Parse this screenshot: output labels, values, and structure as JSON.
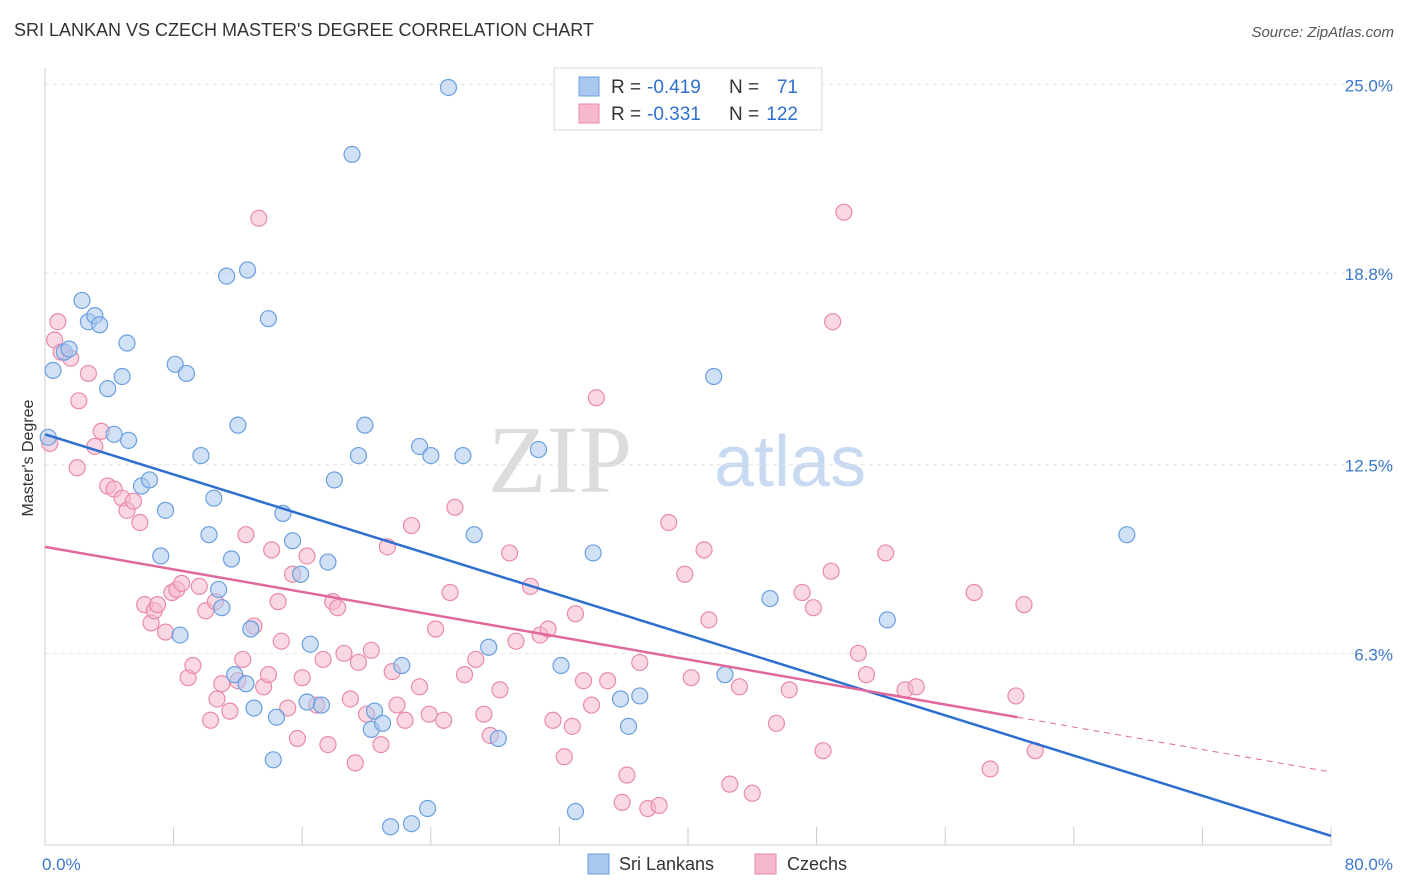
{
  "title": "SRI LANKAN VS CZECH MASTER'S DEGREE CORRELATION CHART",
  "source": "Source: ZipAtlas.com",
  "watermark": {
    "zip": "ZIP",
    "atlas": "atlas"
  },
  "colors": {
    "blue_fill": "#aac8ee",
    "blue_stroke": "#6a9fe0",
    "blue_line": "#2f6fd0",
    "pink_fill": "#f5b8cc",
    "pink_stroke": "#e98aaa",
    "pink_line": "#e0689a",
    "grid": "#e3e3e3",
    "tick_label": "#3b78c8"
  },
  "chart_data": {
    "type": "scatter",
    "title": "SRI LANKAN VS CZECH MASTER'S DEGREE CORRELATION CHART",
    "xlabel": "",
    "ylabel": "Master's Degree",
    "xlim": [
      0,
      80
    ],
    "ylim": [
      0,
      26
    ],
    "y_ticks": [
      6.3,
      12.5,
      18.8,
      25.0
    ],
    "y_tick_labels": [
      "6.3%",
      "12.5%",
      "18.8%",
      "25.0%"
    ],
    "x_tick_labels": [
      "0.0%",
      "80.0%"
    ],
    "legend": [
      {
        "name": "Sri Lankans",
        "R_label": "R =",
        "R": "-0.419",
        "N_label": "N =",
        "N": "71"
      },
      {
        "name": "Czechs",
        "R_label": "R =",
        "R": "-0.331",
        "N_label": "N =",
        "N": "122"
      }
    ],
    "series": [
      {
        "name": "Sri Lankans",
        "trend": {
          "x0": 0,
          "y0": 13.5,
          "x1": 80,
          "y1": 0.3
        },
        "points": [
          [
            0.5,
            15.6
          ],
          [
            0.2,
            13.4
          ],
          [
            1.2,
            16.2
          ],
          [
            1.5,
            16.3
          ],
          [
            2.3,
            17.9
          ],
          [
            2.7,
            17.2
          ],
          [
            3.1,
            17.4
          ],
          [
            3.4,
            17.1
          ],
          [
            5.1,
            16.5
          ],
          [
            3.9,
            15.0
          ],
          [
            4.3,
            13.5
          ],
          [
            4.8,
            15.4
          ],
          [
            5.2,
            13.3
          ],
          [
            6.0,
            11.8
          ],
          [
            6.5,
            12.0
          ],
          [
            7.5,
            11.0
          ],
          [
            7.2,
            9.5
          ],
          [
            8.1,
            15.8
          ],
          [
            8.4,
            6.9
          ],
          [
            9.7,
            12.8
          ],
          [
            10.2,
            10.2
          ],
          [
            8.8,
            15.5
          ],
          [
            10.5,
            11.4
          ],
          [
            10.8,
            8.4
          ],
          [
            11.0,
            7.8
          ],
          [
            11.3,
            18.7
          ],
          [
            11.6,
            9.4
          ],
          [
            11.8,
            5.6
          ],
          [
            12.0,
            13.8
          ],
          [
            12.5,
            5.3
          ],
          [
            12.6,
            18.9
          ],
          [
            12.8,
            7.1
          ],
          [
            13.0,
            4.5
          ],
          [
            13.9,
            17.3
          ],
          [
            14.2,
            2.8
          ],
          [
            14.4,
            4.2
          ],
          [
            14.8,
            10.9
          ],
          [
            15.4,
            10.0
          ],
          [
            15.9,
            8.9
          ],
          [
            16.3,
            4.7
          ],
          [
            16.5,
            6.6
          ],
          [
            17.2,
            4.6
          ],
          [
            17.6,
            9.3
          ],
          [
            18.0,
            12.0
          ],
          [
            19.1,
            22.7
          ],
          [
            19.5,
            12.8
          ],
          [
            19.9,
            13.8
          ],
          [
            20.3,
            3.8
          ],
          [
            20.5,
            4.4
          ],
          [
            21.0,
            4.0
          ],
          [
            21.5,
            0.6
          ],
          [
            22.2,
            5.9
          ],
          [
            22.8,
            0.7
          ],
          [
            23.3,
            13.1
          ],
          [
            23.8,
            1.2
          ],
          [
            24.0,
            12.8
          ],
          [
            25.1,
            24.9
          ],
          [
            26.0,
            12.8
          ],
          [
            26.7,
            10.2
          ],
          [
            27.6,
            6.5
          ],
          [
            28.2,
            3.5
          ],
          [
            30.7,
            13.0
          ],
          [
            32.1,
            5.9
          ],
          [
            33.0,
            1.1
          ],
          [
            34.1,
            9.6
          ],
          [
            35.8,
            4.8
          ],
          [
            36.3,
            3.9
          ],
          [
            37.0,
            4.9
          ],
          [
            41.6,
            15.4
          ],
          [
            42.3,
            5.6
          ],
          [
            45.1,
            8.1
          ],
          [
            52.4,
            7.4
          ],
          [
            67.3,
            10.2
          ]
        ]
      },
      {
        "name": "Czechs",
        "trend": {
          "x0": 0,
          "y0": 9.8,
          "x1": 60.5,
          "y1": 4.2,
          "dash_x1": 80,
          "dash_y1": 2.4
        },
        "points": [
          [
            0.3,
            13.2
          ],
          [
            0.6,
            16.6
          ],
          [
            0.8,
            17.2
          ],
          [
            1.0,
            16.2
          ],
          [
            1.6,
            16.0
          ],
          [
            2.0,
            12.4
          ],
          [
            2.1,
            14.6
          ],
          [
            2.7,
            15.5
          ],
          [
            3.1,
            13.1
          ],
          [
            3.5,
            13.6
          ],
          [
            3.9,
            11.8
          ],
          [
            4.3,
            11.7
          ],
          [
            4.8,
            11.4
          ],
          [
            5.1,
            11.0
          ],
          [
            5.5,
            11.3
          ],
          [
            5.9,
            10.6
          ],
          [
            6.2,
            7.9
          ],
          [
            6.6,
            7.3
          ],
          [
            6.8,
            7.7
          ],
          [
            7.0,
            7.9
          ],
          [
            7.5,
            7.0
          ],
          [
            7.9,
            8.3
          ],
          [
            8.2,
            8.4
          ],
          [
            8.5,
            8.6
          ],
          [
            8.9,
            5.5
          ],
          [
            9.2,
            5.9
          ],
          [
            9.6,
            8.5
          ],
          [
            10.0,
            7.7
          ],
          [
            10.3,
            4.1
          ],
          [
            10.6,
            8.0
          ],
          [
            10.7,
            4.8
          ],
          [
            11.0,
            5.3
          ],
          [
            11.5,
            4.4
          ],
          [
            12.0,
            5.4
          ],
          [
            12.3,
            6.1
          ],
          [
            12.5,
            10.2
          ],
          [
            13.0,
            7.2
          ],
          [
            13.3,
            20.6
          ],
          [
            13.6,
            5.2
          ],
          [
            13.9,
            5.6
          ],
          [
            14.1,
            9.7
          ],
          [
            14.5,
            8.0
          ],
          [
            14.7,
            6.7
          ],
          [
            15.1,
            4.5
          ],
          [
            15.4,
            8.9
          ],
          [
            15.7,
            3.5
          ],
          [
            16.0,
            5.5
          ],
          [
            16.3,
            9.5
          ],
          [
            16.9,
            4.6
          ],
          [
            17.3,
            6.1
          ],
          [
            17.6,
            3.3
          ],
          [
            17.9,
            8.0
          ],
          [
            18.2,
            7.8
          ],
          [
            18.6,
            6.3
          ],
          [
            19.0,
            4.8
          ],
          [
            19.3,
            2.7
          ],
          [
            19.5,
            6.0
          ],
          [
            20.0,
            4.3
          ],
          [
            20.3,
            6.4
          ],
          [
            20.9,
            3.3
          ],
          [
            21.3,
            9.8
          ],
          [
            21.6,
            5.7
          ],
          [
            21.9,
            4.6
          ],
          [
            22.4,
            4.1
          ],
          [
            22.8,
            10.5
          ],
          [
            23.3,
            5.2
          ],
          [
            23.9,
            4.3
          ],
          [
            24.3,
            7.1
          ],
          [
            24.8,
            4.1
          ],
          [
            25.2,
            8.3
          ],
          [
            25.5,
            11.1
          ],
          [
            26.1,
            5.6
          ],
          [
            26.8,
            6.1
          ],
          [
            27.3,
            4.3
          ],
          [
            27.7,
            3.6
          ],
          [
            28.3,
            5.1
          ],
          [
            28.9,
            9.6
          ],
          [
            29.3,
            6.7
          ],
          [
            30.2,
            8.5
          ],
          [
            30.8,
            6.9
          ],
          [
            31.3,
            7.1
          ],
          [
            31.6,
            4.1
          ],
          [
            32.3,
            2.9
          ],
          [
            32.8,
            3.9
          ],
          [
            33.0,
            7.6
          ],
          [
            33.5,
            5.4
          ],
          [
            34.0,
            4.6
          ],
          [
            34.3,
            14.7
          ],
          [
            35.0,
            5.4
          ],
          [
            35.9,
            1.4
          ],
          [
            36.2,
            2.3
          ],
          [
            37.0,
            6.0
          ],
          [
            37.5,
            1.2
          ],
          [
            38.2,
            1.3
          ],
          [
            38.8,
            10.6
          ],
          [
            39.8,
            8.9
          ],
          [
            40.2,
            5.5
          ],
          [
            41.0,
            9.7
          ],
          [
            41.3,
            7.4
          ],
          [
            42.6,
            2.0
          ],
          [
            43.2,
            5.2
          ],
          [
            44.0,
            1.7
          ],
          [
            45.5,
            4.0
          ],
          [
            46.3,
            5.1
          ],
          [
            47.1,
            8.3
          ],
          [
            47.8,
            7.8
          ],
          [
            48.4,
            3.1
          ],
          [
            48.9,
            9.0
          ],
          [
            49.0,
            17.2
          ],
          [
            49.7,
            20.8
          ],
          [
            50.6,
            6.3
          ],
          [
            51.1,
            5.6
          ],
          [
            52.3,
            9.6
          ],
          [
            53.5,
            5.1
          ],
          [
            54.2,
            5.2
          ],
          [
            57.8,
            8.3
          ],
          [
            58.8,
            2.5
          ],
          [
            60.4,
            4.9
          ],
          [
            60.9,
            7.9
          ],
          [
            61.6,
            3.1
          ]
        ]
      }
    ]
  }
}
